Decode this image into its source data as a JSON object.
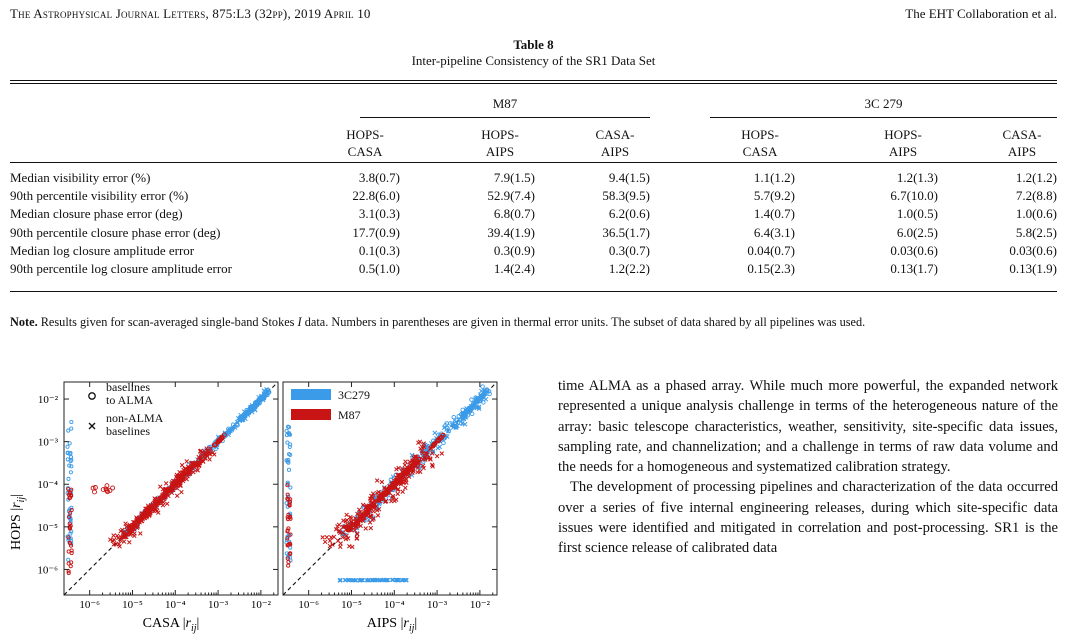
{
  "header": {
    "journal": "The Astrophysical Journal Letters, 875:L3 (32pp), 2019 April 10",
    "authors": "The EHT Collaboration et al."
  },
  "table": {
    "number": "Table 8",
    "title": "Inter-pipeline Consistency of the SR1 Data Set",
    "groups": [
      "M87",
      "3C 279"
    ],
    "columns": [
      {
        "l1": "HOPS-",
        "l2": "CASA"
      },
      {
        "l1": "HOPS-",
        "l2": "AIPS"
      },
      {
        "l1": "CASA-",
        "l2": "AIPS"
      },
      {
        "l1": "HOPS-",
        "l2": "CASA"
      },
      {
        "l1": "HOPS-",
        "l2": "AIPS"
      },
      {
        "l1": "CASA-",
        "l2": "AIPS"
      }
    ],
    "rows": [
      {
        "label": "Median visibility error (%)",
        "values": [
          "3.8(0.7)",
          "7.9(1.5)",
          "9.4(1.5)",
          "1.1(1.2)",
          "1.2(1.3)",
          "1.2(1.2)"
        ]
      },
      {
        "label": "90th percentile visibility error (%)",
        "values": [
          "22.8(6.0)",
          "52.9(7.4)",
          "58.3(9.5)",
          "5.7(9.2)",
          "6.7(10.0)",
          "7.2(8.8)"
        ]
      },
      {
        "label": "Median closure phase error (deg)",
        "values": [
          "3.1(0.3)",
          "6.8(0.7)",
          "6.2(0.6)",
          "1.4(0.7)",
          "1.0(0.5)",
          "1.0(0.6)"
        ]
      },
      {
        "label": "90th percentile closure phase error (deg)",
        "values": [
          "17.7(0.9)",
          "39.4(1.9)",
          "36.5(1.7)",
          "6.4(3.1)",
          "6.0(2.5)",
          "5.8(2.5)"
        ]
      },
      {
        "label": "Median log closure amplitude error",
        "values": [
          "0.1(0.3)",
          "0.3(0.9)",
          "0.3(0.7)",
          "0.04(0.7)",
          "0.03(0.6)",
          "0.03(0.6)"
        ]
      },
      {
        "label": "90th percentile log closure amplitude error",
        "values": [
          "0.5(1.0)",
          "1.4(2.4)",
          "1.2(2.2)",
          "0.15(2.3)",
          "0.13(1.7)",
          "0.13(1.9)"
        ]
      }
    ],
    "note": {
      "label": "Note.",
      "text_before": " Results given for scan-averaged single-band Stokes ",
      "stokes": "I",
      "text_after": " data. Numbers in parentheses are given in thermal error units. The subset of data shared by all pipelines was used."
    }
  },
  "figure": {
    "ylabel": "HOPS |r_ij|",
    "left_xlabel": "CASA |r_ij|",
    "right_xlabel": "AIPS |r_ij|",
    "y_ticks": [
      "10⁻²",
      "10⁻³",
      "10⁻⁴",
      "10⁻⁵",
      "10⁻⁶"
    ],
    "x_ticks": [
      "10⁻⁶",
      "10⁻⁵",
      "10⁻⁴",
      "10⁻³",
      "10⁻²"
    ],
    "legend_markers": [
      "baselines to ALMA",
      "non-ALMA baselines"
    ],
    "legend_sources": [
      "3C279",
      "M87"
    ],
    "colors": {
      "c3c279": "#3b9be8",
      "m87": "#c81414"
    }
  },
  "body": {
    "p1": "time ALMA as a phased array. While much more powerful, the expanded network represented a unique analysis challenge in terms of the heterogeneous nature of the array: basic telescope characteristics, weather, sensitivity, site-specific data issues, sampling rate, and channelization; and a challenge in terms of raw data volume and the needs for a homogeneous and systematized calibration strategy.",
    "p2": "The development of processing pipelines and characterization of the data occurred over a series of five internal engineering releases, during which site-specific data issues were identified and mitigated in correlation and post-processing. SR1 is the first science release of calibrated data"
  }
}
